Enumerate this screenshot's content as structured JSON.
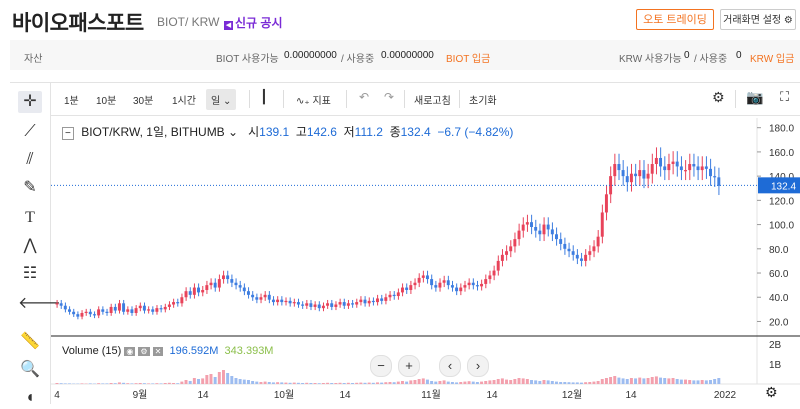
{
  "header": {
    "coin_name": "바이오패스포트",
    "pair": "BIOT/ KRW",
    "notice": "신규 공시",
    "auto_trading": "오토 트레이딩",
    "screen_settings": "거래화면 설정"
  },
  "assets": {
    "label": "자산",
    "biot_available_label": "BIOT 사용가능",
    "biot_available": "0.00000000",
    "biot_in_use_label": "/ 사용중",
    "biot_in_use": "0.00000000",
    "biot_deposit": "BIOT 입금",
    "krw_available_label": "KRW 사용가능",
    "krw_available": "0",
    "krw_in_use_label": "/ 사용중",
    "krw_in_use": "0",
    "krw_deposit": "KRW 입금"
  },
  "toolbar": {
    "intervals": [
      "1분",
      "10분",
      "30분",
      "1시간",
      "일"
    ],
    "indicator": "지표",
    "refresh": "새로고침",
    "reset": "초기화"
  },
  "legend": {
    "symbol": "BIOT/KRW, 1일, BITHUMB",
    "open_label": "시",
    "open": "139.1",
    "high_label": "고",
    "high": "142.6",
    "low_label": "저",
    "low": "111.2",
    "close_label": "종",
    "close": "132.4",
    "change": "−6.7 (−4.82%)"
  },
  "volume": {
    "label": "Volume (15)",
    "value1": "196.592M",
    "value2": "343.393M"
  },
  "colors": {
    "up": "#e8435a",
    "down": "#3d7de0",
    "accent": "#f37321",
    "price_line": "#1e6bd6"
  },
  "chart_data": {
    "type": "candlestick",
    "y_ticks": [
      "180.0",
      "160.0",
      "140.0",
      "120.0",
      "100.0",
      "80.0",
      "60.0",
      "40.0",
      "20.0"
    ],
    "vol_ticks": [
      "2B",
      "1B"
    ],
    "x_ticks": [
      "4",
      "9월",
      "14",
      "10월",
      "14",
      "11월",
      "14",
      "12월",
      "14",
      "2022"
    ],
    "last_price": "132.4",
    "ylim": [
      8,
      188
    ],
    "closes": [
      35,
      33,
      30,
      28,
      26,
      24,
      27,
      28,
      26,
      25,
      30,
      28,
      27,
      32,
      29,
      35,
      28,
      30,
      27,
      31,
      33,
      29,
      30,
      28,
      31,
      30,
      32,
      34,
      36,
      35,
      40,
      45,
      42,
      48,
      44,
      46,
      50,
      52,
      48,
      55,
      58,
      55,
      52,
      50,
      48,
      45,
      42,
      40,
      38,
      40,
      42,
      38,
      36,
      38,
      36,
      37,
      35,
      36,
      34,
      33,
      35,
      32,
      34,
      31,
      33,
      35,
      32,
      34,
      36,
      33,
      35,
      34,
      36,
      38,
      35,
      37,
      36,
      39,
      37,
      40,
      42,
      41,
      44,
      48,
      46,
      50,
      52,
      56,
      58,
      55,
      50,
      48,
      52,
      54,
      50,
      48,
      45,
      48,
      50,
      52,
      50,
      49,
      51,
      55,
      58,
      62,
      70,
      75,
      78,
      82,
      88,
      95,
      100,
      102,
      98,
      95,
      92,
      100,
      96,
      92,
      88,
      84,
      80,
      78,
      75,
      72,
      70,
      75,
      78,
      82,
      90,
      110,
      125,
      140,
      150,
      145,
      140,
      135,
      142,
      140,
      145,
      138,
      142,
      150,
      155,
      148,
      145,
      150,
      152,
      148,
      145,
      145,
      150,
      148,
      145,
      148,
      146,
      140,
      139,
      132
    ],
    "volumes": [
      0.05,
      0.04,
      0.03,
      0.03,
      0.02,
      0.02,
      0.03,
      0.02,
      0.03,
      0.02,
      0.04,
      0.03,
      0.03,
      0.05,
      0.04,
      0.08,
      0.06,
      0.04,
      0.03,
      0.04,
      0.05,
      0.04,
      0.03,
      0.03,
      0.04,
      0.03,
      0.05,
      0.06,
      0.05,
      0.04,
      0.12,
      0.2,
      0.15,
      0.3,
      0.25,
      0.28,
      0.45,
      0.5,
      0.35,
      0.6,
      0.7,
      0.55,
      0.4,
      0.3,
      0.25,
      0.22,
      0.2,
      0.15,
      0.12,
      0.1,
      0.12,
      0.1,
      0.08,
      0.09,
      0.08,
      0.07,
      0.06,
      0.07,
      0.06,
      0.05,
      0.06,
      0.05,
      0.05,
      0.04,
      0.05,
      0.06,
      0.05,
      0.05,
      0.06,
      0.05,
      0.06,
      0.05,
      0.06,
      0.07,
      0.06,
      0.07,
      0.06,
      0.08,
      0.07,
      0.09,
      0.1,
      0.09,
      0.12,
      0.15,
      0.12,
      0.18,
      0.2,
      0.25,
      0.28,
      0.22,
      0.15,
      0.12,
      0.15,
      0.18,
      0.12,
      0.1,
      0.08,
      0.1,
      0.12,
      0.14,
      0.12,
      0.1,
      0.12,
      0.15,
      0.18,
      0.2,
      0.25,
      0.28,
      0.22,
      0.2,
      0.25,
      0.3,
      0.28,
      0.25,
      0.2,
      0.18,
      0.15,
      0.2,
      0.18,
      0.15,
      0.12,
      0.1,
      0.1,
      0.09,
      0.08,
      0.08,
      0.07,
      0.09,
      0.1,
      0.12,
      0.15,
      0.25,
      0.3,
      0.35,
      0.4,
      0.32,
      0.28,
      0.25,
      0.3,
      0.28,
      0.32,
      0.28,
      0.3,
      0.35,
      0.38,
      0.32,
      0.3,
      0.28,
      0.3,
      0.25,
      0.22,
      0.22,
      0.2,
      0.18,
      0.18,
      0.2,
      0.18,
      0.2,
      0.25,
      0.3
    ]
  }
}
